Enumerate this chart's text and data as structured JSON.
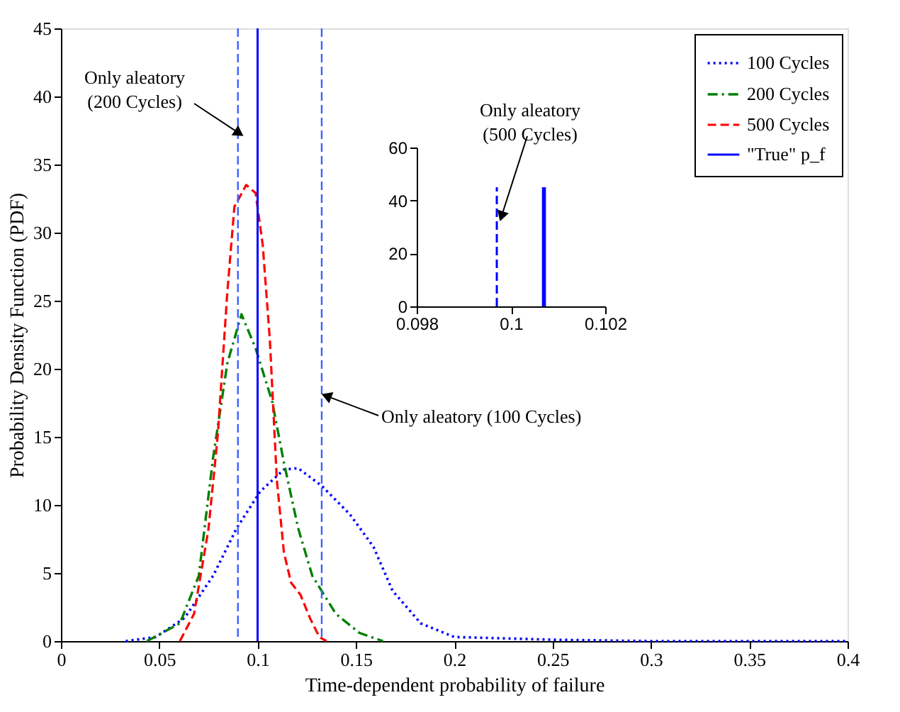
{
  "chart_data": [
    {
      "type": "line",
      "xlabel": "Time-dependent probability of failure",
      "ylabel": "Probability Density Function (PDF)",
      "xlim": [
        0,
        0.4
      ],
      "ylim": [
        0,
        45
      ],
      "xticks": [
        0,
        0.05,
        0.1,
        0.15,
        0.2,
        0.25,
        0.3,
        0.35,
        0.4
      ],
      "yticks": [
        0,
        5,
        10,
        15,
        20,
        25,
        30,
        35,
        40,
        45
      ],
      "grid": false,
      "legend": "top right",
      "series": [
        {
          "name": "100 Cycles",
          "color": "#0000ff",
          "line_style": "dotted",
          "x": [
            0.033,
            0.0483,
            0.0629,
            0.0774,
            0.0894,
            0.1014,
            0.1134,
            0.1206,
            0.1326,
            0.147,
            0.159,
            0.1686,
            0.183,
            0.2,
            0.25,
            0.3,
            0.4
          ],
          "values": [
            0,
            0.3,
            1.7,
            4.8,
            8.3,
            11.0,
            12.6,
            12.7,
            11.4,
            9.3,
            6.9,
            3.7,
            1.3,
            0.3,
            0.1,
            0,
            0
          ]
        },
        {
          "name": "200 Cycles",
          "color": "#008000",
          "line_style": "dashdot",
          "x": [
            0.0437,
            0.0605,
            0.0701,
            0.0773,
            0.0846,
            0.0918,
            0.099,
            0.1074,
            0.1134,
            0.1206,
            0.1278,
            0.1398,
            0.1518,
            0.1638
          ],
          "values": [
            0,
            1.3,
            4.8,
            13.4,
            20.4,
            24.0,
            21.5,
            17.6,
            13.1,
            8.3,
            4.8,
            2.0,
            0.6,
            0
          ]
        },
        {
          "name": "500 Cycles",
          "color": "#ff0000",
          "line_style": "dashed",
          "x": [
            0.0605,
            0.0677,
            0.075,
            0.0798,
            0.0846,
            0.0882,
            0.0942,
            0.099,
            0.1026,
            0.1062,
            0.1098,
            0.1134,
            0.117,
            0.1218,
            0.1266,
            0.1314,
            0.135
          ],
          "values": [
            0,
            2.0,
            8.2,
            15.2,
            25.6,
            31.9,
            33.5,
            32.9,
            29.1,
            22.2,
            11.8,
            6.5,
            4.3,
            3.4,
            1.7,
            0.3,
            0
          ]
        },
        {
          "name": "\"True\" p_f",
          "color": "#0000ff",
          "line_style": "solid",
          "x": [
            0.1,
            0.1
          ],
          "values": [
            0,
            45
          ]
        }
      ],
      "ref_lines": [
        {
          "axis": "x",
          "value": 0.09,
          "color": "#4060ff",
          "line_style": "dashed"
        },
        {
          "axis": "x",
          "value": 0.1326,
          "color": "#4060ff",
          "line_style": "dashed"
        }
      ],
      "annotations": [
        {
          "text": "Only aleatory\n(200 Cycles)",
          "x": 0.0906,
          "y": 37.3
        },
        {
          "text": "Only aleatory (100 Cycles)",
          "x": 0.135,
          "y": 18
        }
      ]
    },
    {
      "type": "line",
      "xlim": [
        0.098,
        0.102
      ],
      "ylim": [
        0,
        60
      ],
      "xticks": [
        0.098,
        0.1,
        0.102
      ],
      "yticks": [
        0,
        20,
        40,
        60
      ],
      "grid": false,
      "series": [
        {
          "color": "#0000ff",
          "line_style": "dashed",
          "x": [
            0.0997,
            0.0997
          ],
          "values": [
            0,
            45
          ]
        },
        {
          "color": "#0000ff",
          "line_style": "solid",
          "x": [
            0.1007,
            0.1007
          ],
          "values": [
            0,
            45
          ]
        }
      ],
      "annotations": [
        {
          "text": "Only aleatory\n(500 Cycles)",
          "x": 0.0998,
          "y": 34
        }
      ]
    }
  ]
}
